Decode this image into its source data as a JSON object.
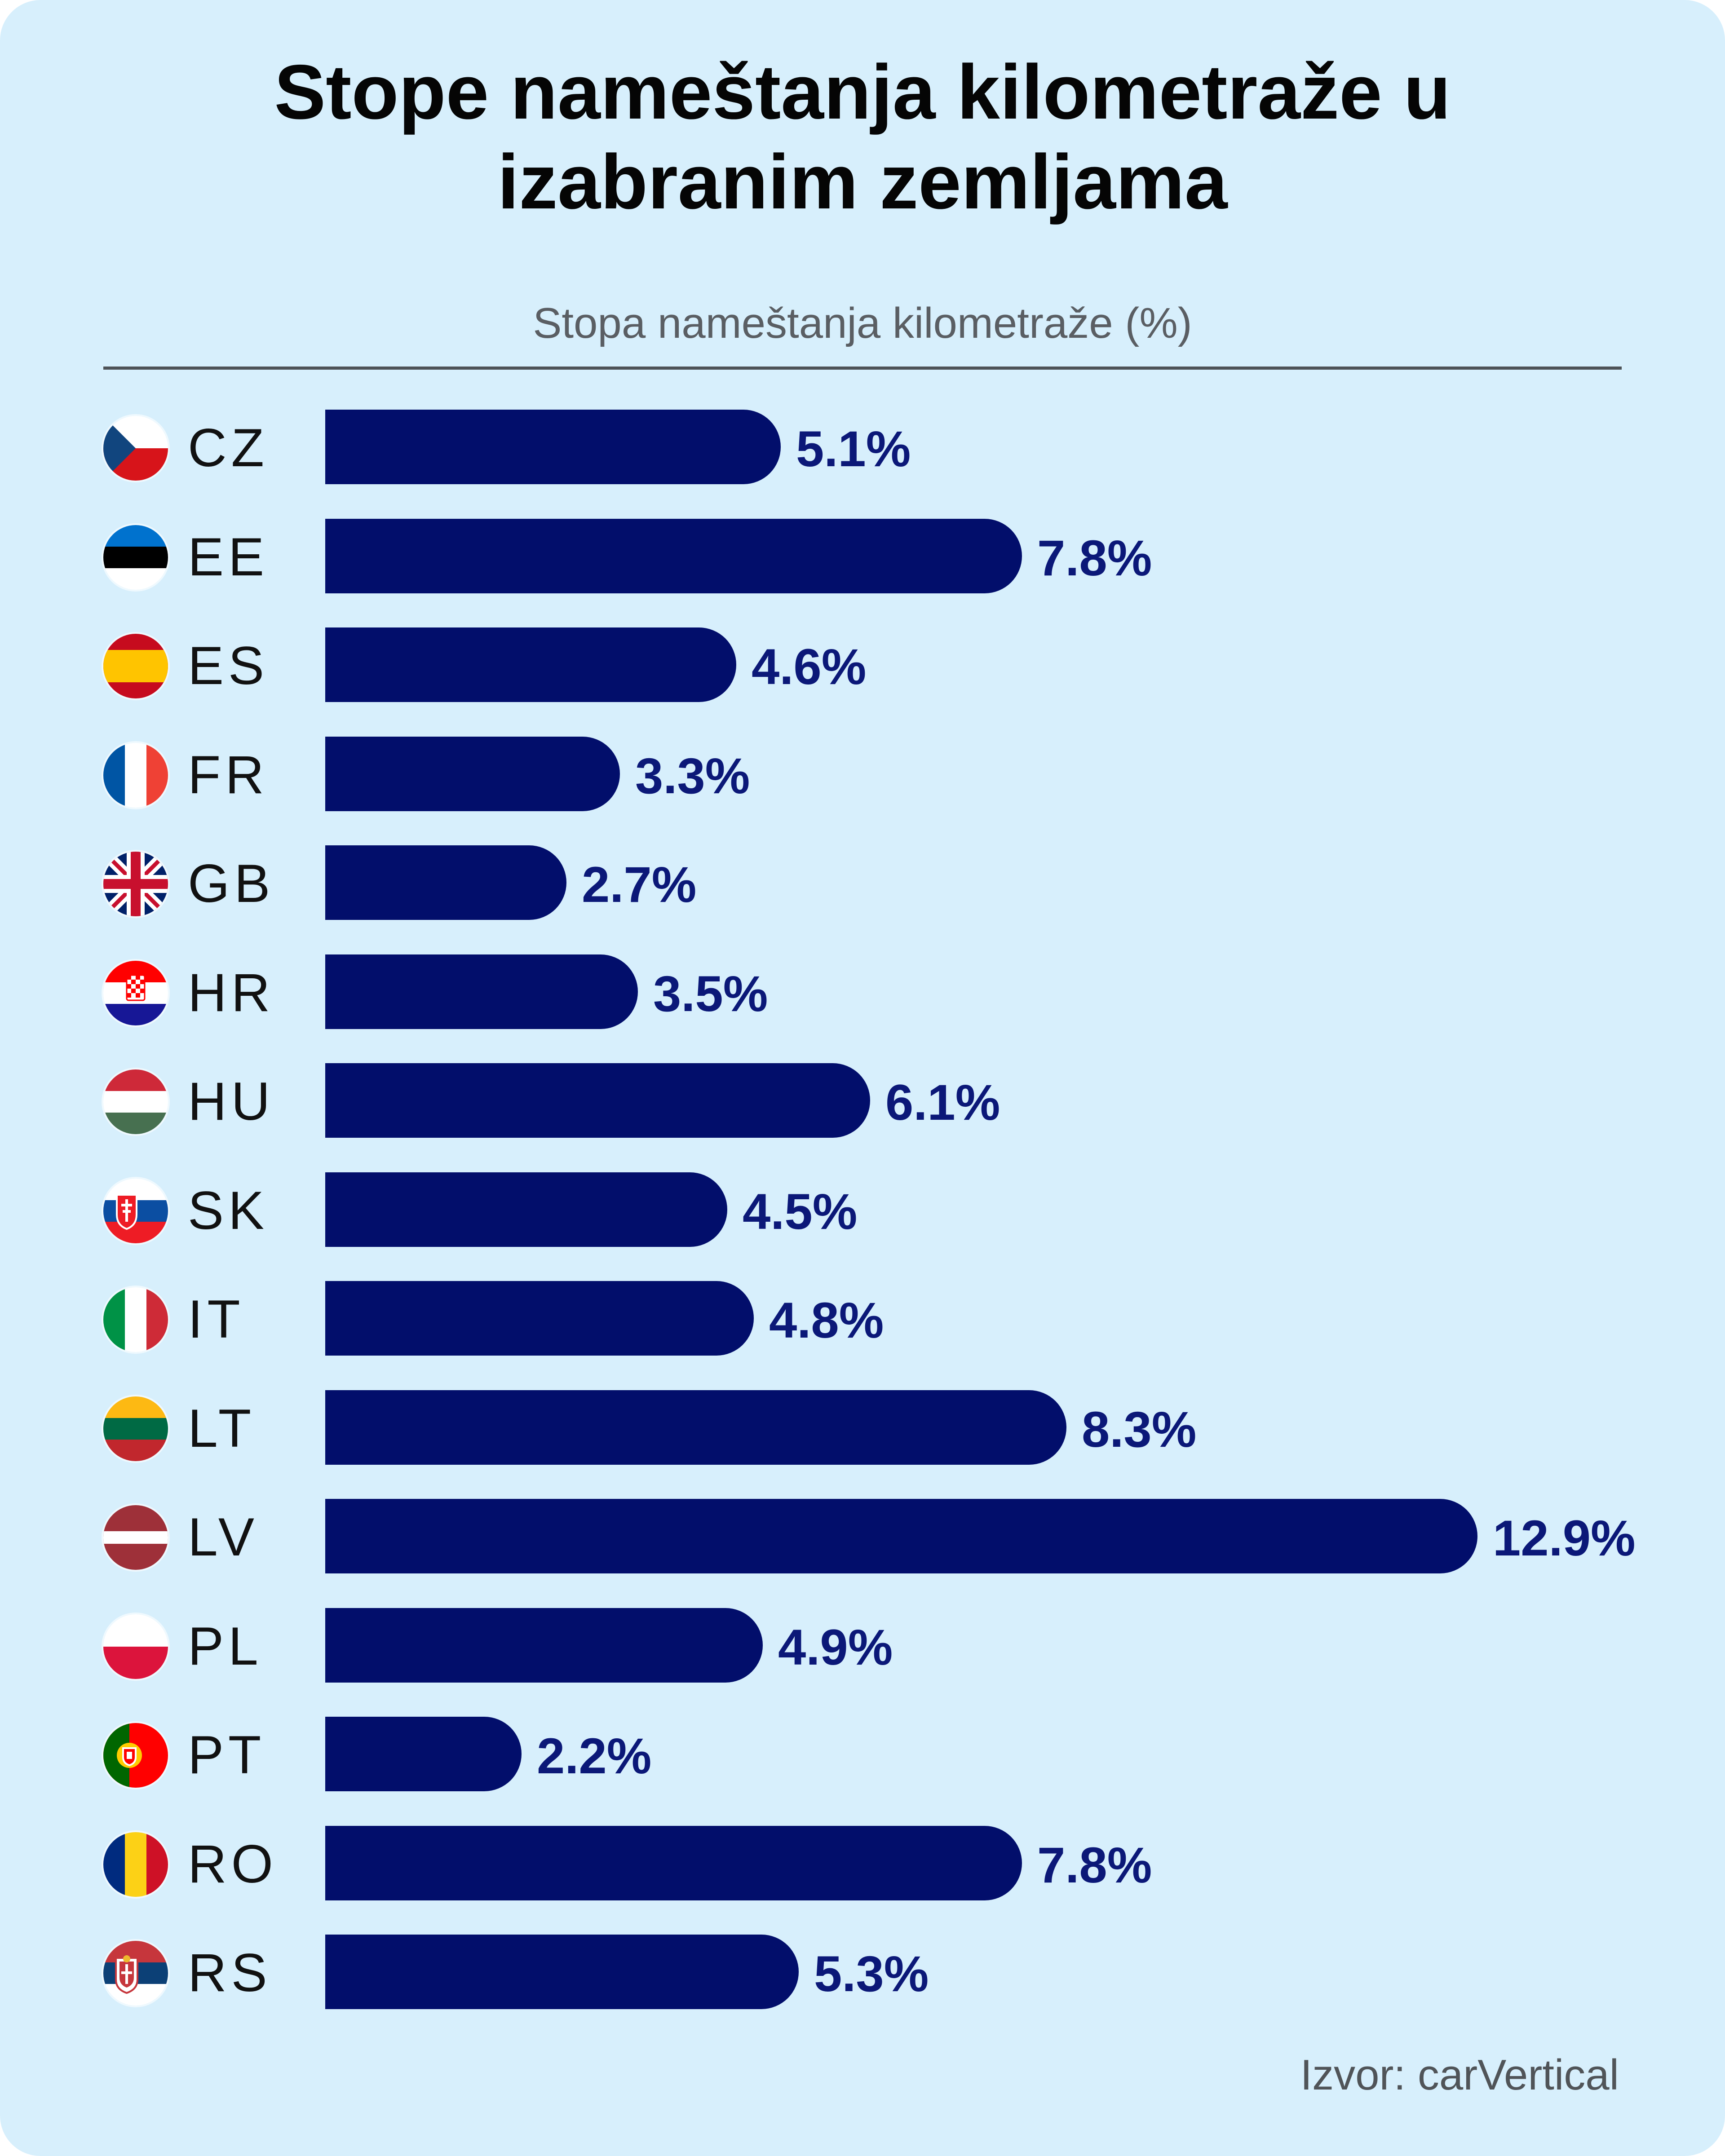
{
  "chart_data": {
    "type": "bar",
    "orientation": "horizontal",
    "title": "Stope nameštanja kilometraže u izabranim zemljama",
    "xlabel": "Stopa nameštanja kilometraže (%)",
    "ylabel": "",
    "categories": [
      "CZ",
      "EE",
      "ES",
      "FR",
      "GB",
      "HR",
      "HU",
      "SK",
      "IT",
      "LT",
      "LV",
      "PL",
      "PT",
      "RO",
      "RS"
    ],
    "values": [
      5.1,
      7.8,
      4.6,
      3.3,
      2.7,
      3.5,
      6.1,
      4.5,
      4.8,
      8.3,
      12.9,
      4.9,
      2.2,
      7.8,
      5.3
    ],
    "value_labels": [
      "5.1%",
      "7.8%",
      "4.6%",
      "3.3%",
      "2.7%",
      "3.5%",
      "6.1%",
      "4.5%",
      "4.8%",
      "8.3%",
      "12.9%",
      "4.9%",
      "2.2%",
      "7.8%",
      "5.3%"
    ],
    "xlim": [
      0,
      12.9
    ],
    "grid": false,
    "legend": "none",
    "source": "Izvor: carVertical",
    "colors": {
      "bar": "#020e6b",
      "value_text": "#0b1878",
      "background": "#d7effc"
    }
  },
  "flag_icons": [
    "cz-flag-icon",
    "ee-flag-icon",
    "es-flag-icon",
    "fr-flag-icon",
    "gb-flag-icon",
    "hr-flag-icon",
    "hu-flag-icon",
    "sk-flag-icon",
    "it-flag-icon",
    "lt-flag-icon",
    "lv-flag-icon",
    "pl-flag-icon",
    "pt-flag-icon",
    "ro-flag-icon",
    "rs-flag-icon"
  ]
}
